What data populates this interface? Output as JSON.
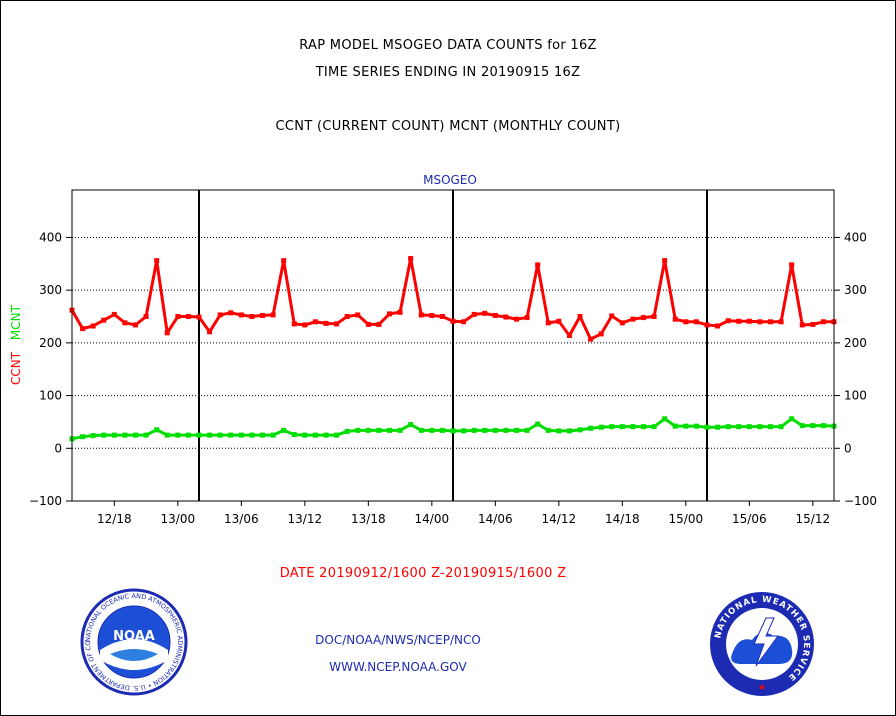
{
  "header": {
    "line1": "RAP MODEL MSOGEO DATA COUNTS for 16Z",
    "line2": "TIME SERIES ENDING IN 20190915 16Z",
    "line3": "CCNT (CURRENT COUNT) MCNT (MONTHLY COUNT)"
  },
  "footer": {
    "date_range": "DATE 20190912/1600 Z-20190915/1600 Z",
    "org": "DOC/NOAA/NWS/NCEP/NCO",
    "url": "WWW.NCEP.NOAA.GOV"
  },
  "logos": {
    "noaa_text": "NOAA",
    "noaa_ring": "NATIONAL OCEANIC AND ATMOSPHERIC ADMINISTRATION • U.S. DEPARTMENT OF COMMERCE •",
    "nws_ring": "NATIONAL WEATHER SERVICE"
  },
  "chart_data": {
    "type": "line",
    "title": "MSOGEO",
    "ylabel_parts": [
      {
        "text": "CCNT",
        "color": "#ff0000"
      },
      {
        "text": "MCNT",
        "color": "#00dd00"
      }
    ],
    "ylim": [
      -100,
      490
    ],
    "yticks": [
      -100,
      0,
      100,
      200,
      300,
      400
    ],
    "xlim": [
      0,
      72
    ],
    "x_ticks": [
      {
        "x": 4,
        "label": "12/18"
      },
      {
        "x": 10,
        "label": "13/00"
      },
      {
        "x": 16,
        "label": "13/06"
      },
      {
        "x": 22,
        "label": "13/12"
      },
      {
        "x": 28,
        "label": "13/18"
      },
      {
        "x": 34,
        "label": "14/00"
      },
      {
        "x": 40,
        "label": "14/06"
      },
      {
        "x": 46,
        "label": "14/12"
      },
      {
        "x": 52,
        "label": "14/18"
      },
      {
        "x": 58,
        "label": "15/00"
      },
      {
        "x": 64,
        "label": "15/06"
      },
      {
        "x": 70,
        "label": "15/12"
      }
    ],
    "vlines_x": [
      12,
      36,
      60
    ],
    "grid_y": [
      0,
      100,
      200,
      300,
      400
    ],
    "series": [
      {
        "name": "CCNT",
        "color": "#ff0000",
        "values": [
          262,
          227,
          232,
          243,
          254,
          238,
          234,
          250,
          356,
          219,
          250,
          250,
          249,
          221,
          253,
          257,
          253,
          250,
          252,
          253,
          356,
          236,
          234,
          240,
          237,
          236,
          250,
          253,
          235,
          235,
          255,
          258,
          360,
          253,
          252,
          250,
          241,
          240,
          254,
          256,
          252,
          249,
          245,
          248,
          348,
          238,
          241,
          214,
          250,
          207,
          217,
          251,
          238,
          245,
          248,
          250,
          356,
          245,
          240,
          240,
          234,
          232,
          242,
          241,
          241,
          240,
          240,
          240,
          348,
          234,
          235,
          240,
          240
        ]
      },
      {
        "name": "MCNT",
        "color": "#00dd00",
        "values": [
          18,
          22,
          24,
          25,
          25,
          25,
          25,
          25,
          35,
          25,
          25,
          25,
          25,
          25,
          25,
          25,
          25,
          25,
          25,
          25,
          34,
          26,
          25,
          25,
          25,
          25,
          32,
          34,
          34,
          34,
          34,
          34,
          45,
          34,
          34,
          34,
          33,
          33,
          34,
          34,
          34,
          34,
          34,
          34,
          46,
          34,
          33,
          33,
          35,
          38,
          40,
          41,
          41,
          41,
          41,
          41,
          56,
          42,
          42,
          42,
          40,
          40,
          41,
          41,
          41,
          41,
          41,
          41,
          56,
          43,
          43,
          43,
          42
        ]
      }
    ]
  }
}
